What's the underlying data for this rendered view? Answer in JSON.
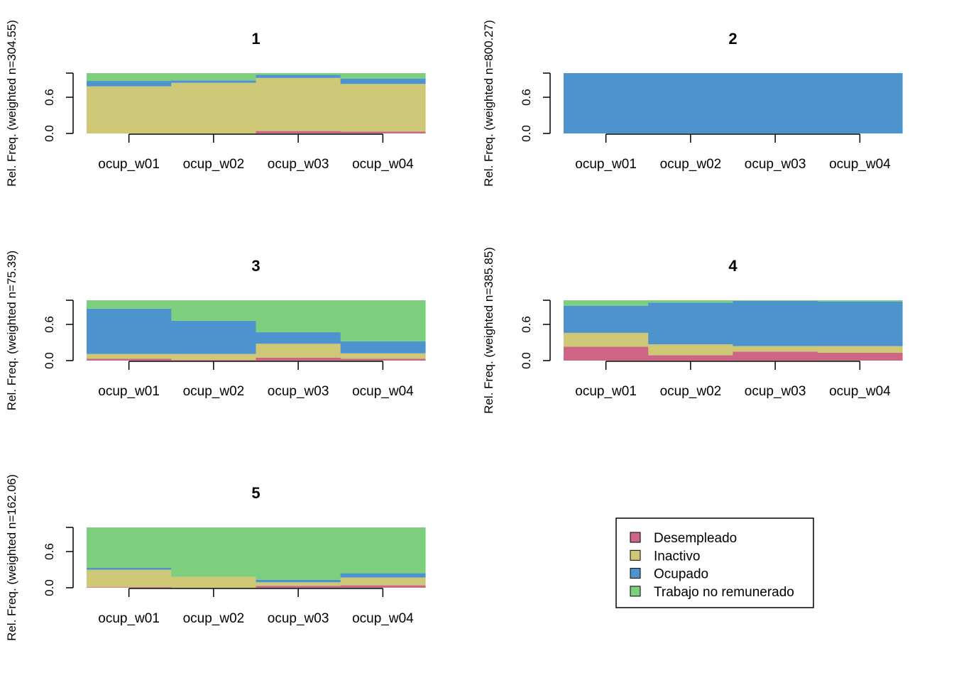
{
  "chart_data": {
    "type": "bar",
    "subtype": "stacked-relative-frequency (state distribution per wave)",
    "categories": [
      "ocup_w01",
      "ocup_w02",
      "ocup_w03",
      "ocup_w04"
    ],
    "y_ticks": [
      "0.0",
      "0.6"
    ],
    "ylim": [
      0,
      1
    ],
    "grid": false,
    "legend_position": "bottom-right",
    "legend": [
      {
        "name": "Desempleado",
        "color": "#CC6684"
      },
      {
        "name": "Inactivo",
        "color": "#CDC776"
      },
      {
        "name": "Ocupado",
        "color": "#4D93CD"
      },
      {
        "name": "Trabajo no remunerado",
        "color": "#7DCF7D"
      }
    ],
    "panels": [
      {
        "title": "1",
        "ylabel": "Rel. Freq. (weighted n=304.55)",
        "stacks": [
          [
            0.0,
            0.78,
            0.09,
            0.13
          ],
          [
            0.0,
            0.84,
            0.04,
            0.12
          ],
          [
            0.04,
            0.88,
            0.05,
            0.03
          ],
          [
            0.03,
            0.79,
            0.09,
            0.09
          ]
        ]
      },
      {
        "title": "2",
        "ylabel": "Rel. Freq. (weighted n=800.27)",
        "stacks": [
          [
            0.0,
            0.0,
            1.0,
            0.0
          ],
          [
            0.0,
            0.0,
            1.0,
            0.0
          ],
          [
            0.0,
            0.0,
            1.0,
            0.0
          ],
          [
            0.0,
            0.0,
            1.0,
            0.0
          ]
        ]
      },
      {
        "title": "3",
        "ylabel": "Rel. Freq. (weighted n=75.39)",
        "stacks": [
          [
            0.03,
            0.08,
            0.75,
            0.14
          ],
          [
            0.01,
            0.1,
            0.55,
            0.34
          ],
          [
            0.05,
            0.23,
            0.19,
            0.53
          ],
          [
            0.03,
            0.09,
            0.2,
            0.68
          ]
        ]
      },
      {
        "title": "4",
        "ylabel": "Rel. Freq. (weighted n=385.85)",
        "stacks": [
          [
            0.23,
            0.23,
            0.45,
            0.09
          ],
          [
            0.09,
            0.18,
            0.69,
            0.04
          ],
          [
            0.15,
            0.09,
            0.75,
            0.01
          ],
          [
            0.13,
            0.11,
            0.74,
            0.02
          ]
        ]
      },
      {
        "title": "5",
        "ylabel": "Rel. Freq. (weighted n=162.06)",
        "stacks": [
          [
            0.01,
            0.29,
            0.03,
            0.67
          ],
          [
            0.0,
            0.18,
            0.0,
            0.82
          ],
          [
            0.03,
            0.06,
            0.04,
            0.87
          ],
          [
            0.04,
            0.13,
            0.07,
            0.76
          ]
        ]
      }
    ]
  }
}
